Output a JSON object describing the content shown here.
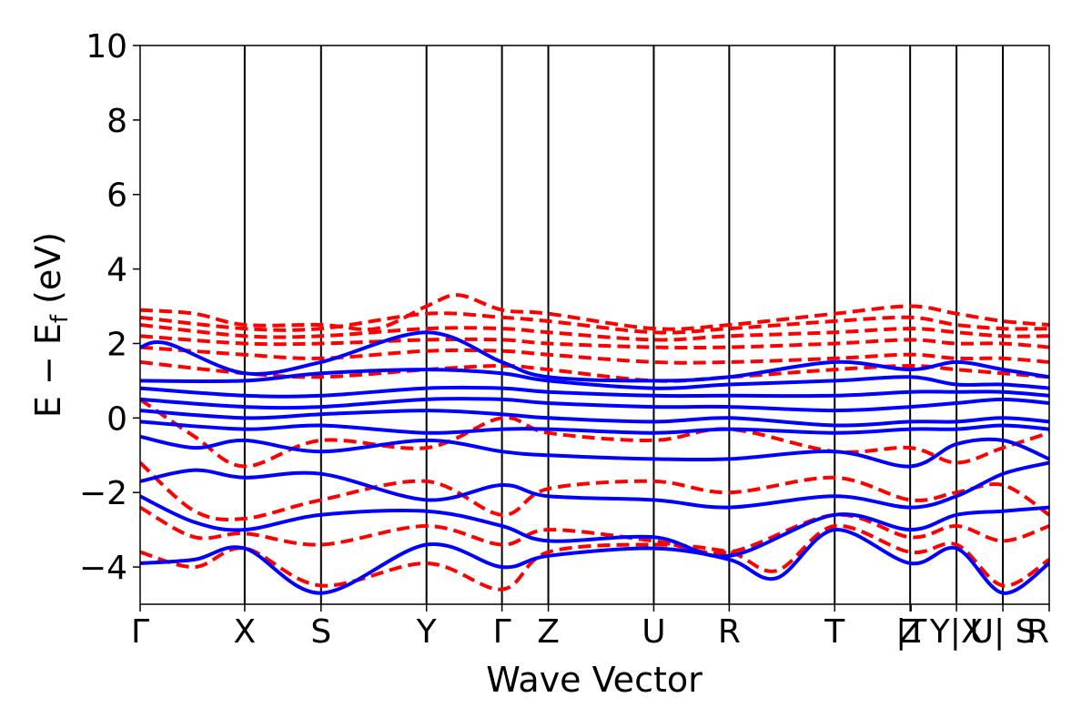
{
  "chart_data": {
    "type": "line",
    "xlabel": "Wave Vector",
    "ylabel_main": "E − E",
    "ylabel_sub": "f",
    "ylabel_unit": " (eV)",
    "ylim": [
      -5,
      10
    ],
    "yticks": [
      10,
      8,
      6,
      4,
      2,
      0,
      -2,
      -4
    ],
    "ytick_labels": [
      "10",
      "8",
      "6",
      "4",
      "2",
      "0",
      "−2",
      "−4"
    ],
    "xlim": [
      0,
      1
    ],
    "kpoints": [
      {
        "label": "Γ",
        "x": 0.0
      },
      {
        "label": "X",
        "x": 0.115
      },
      {
        "label": "S",
        "x": 0.199
      },
      {
        "label": "Y",
        "x": 0.315
      },
      {
        "label": "Γ",
        "x": 0.398
      },
      {
        "label": "Z",
        "x": 0.449
      },
      {
        "label": "U",
        "x": 0.565
      },
      {
        "label": "R",
        "x": 0.648
      },
      {
        "label": "T",
        "x": 0.764
      },
      {
        "label": "Z",
        "x": 0.847
      },
      {
        "label": "|T",
        "x": 0.848
      },
      {
        "label": "Y|X",
        "x": 0.898
      },
      {
        "label": "U| S",
        "x": 0.949
      },
      {
        "label": "R",
        "x": 1.0
      }
    ],
    "vlines": [
      0.115,
      0.199,
      0.315,
      0.398,
      0.449,
      0.565,
      0.648,
      0.764,
      0.847,
      0.898,
      0.949
    ],
    "series": [
      {
        "style": "dashed",
        "color": "#ff0000",
        "bands": [
          {
            "x": [
              0,
              0.06,
              0.115,
              0.199,
              0.26,
              0.315,
              0.35,
              0.398,
              0.449,
              0.565,
              0.648,
              0.764,
              0.847,
              0.898,
              0.949,
              1.0
            ],
            "y": [
              2.9,
              2.8,
              2.5,
              2.5,
              2.4,
              3.0,
              3.3,
              2.9,
              2.8,
              2.4,
              2.5,
              2.8,
              3.0,
              2.8,
              2.6,
              2.5
            ]
          },
          {
            "x": [
              0,
              0.115,
              0.199,
              0.315,
              0.398,
              0.449,
              0.565,
              0.648,
              0.764,
              0.847,
              0.898,
              0.949,
              1.0
            ],
            "y": [
              2.7,
              2.4,
              2.4,
              2.8,
              2.7,
              2.6,
              2.3,
              2.4,
              2.6,
              2.7,
              2.5,
              2.4,
              2.4
            ]
          },
          {
            "x": [
              0,
              0.115,
              0.199,
              0.315,
              0.398,
              0.449,
              0.565,
              0.648,
              0.764,
              0.847,
              0.898,
              0.949,
              1.0
            ],
            "y": [
              2.5,
              2.2,
              2.2,
              2.4,
              2.4,
              2.3,
              2.1,
              2.2,
              2.3,
              2.4,
              2.3,
              2.2,
              2.2
            ]
          },
          {
            "x": [
              0,
              0.115,
              0.199,
              0.315,
              0.398,
              0.449,
              0.565,
              0.648,
              0.764,
              0.847,
              0.898,
              0.949,
              1.0
            ],
            "y": [
              2.2,
              2.0,
              2.0,
              2.1,
              2.1,
              2.0,
              1.9,
              1.9,
              2.0,
              2.1,
              2.0,
              2.0,
              1.9
            ]
          },
          {
            "x": [
              0,
              0.115,
              0.199,
              0.315,
              0.398,
              0.449,
              0.565,
              0.648,
              0.764,
              0.847,
              0.898,
              0.949,
              1.0
            ],
            "y": [
              1.9,
              1.7,
              1.6,
              1.8,
              1.8,
              1.7,
              1.5,
              1.5,
              1.6,
              1.7,
              1.6,
              1.6,
              1.5
            ]
          },
          {
            "x": [
              0,
              0.115,
              0.199,
              0.315,
              0.398,
              0.449,
              0.565,
              0.648,
              0.764,
              0.847,
              0.898,
              0.949,
              1.0
            ],
            "y": [
              1.5,
              1.2,
              1.1,
              1.3,
              1.4,
              1.3,
              1.0,
              1.1,
              1.3,
              1.4,
              1.3,
              1.2,
              1.1
            ]
          },
          {
            "x": [
              0,
              0.06,
              0.115,
              0.199,
              0.315,
              0.398,
              0.449,
              0.565,
              0.648,
              0.764,
              0.847,
              0.898,
              0.949,
              1.0
            ],
            "y": [
              0.5,
              -0.5,
              -1.3,
              -0.6,
              -0.8,
              0.0,
              -0.4,
              -0.6,
              -0.3,
              -0.9,
              -0.8,
              -1.2,
              -0.8,
              -0.4
            ]
          },
          {
            "x": [
              0,
              0.06,
              0.115,
              0.199,
              0.315,
              0.398,
              0.449,
              0.565,
              0.648,
              0.764,
              0.847,
              0.898,
              0.949,
              1.0
            ],
            "y": [
              -1.2,
              -2.5,
              -2.7,
              -2.2,
              -1.7,
              -2.6,
              -1.9,
              -1.7,
              -2.0,
              -1.6,
              -2.2,
              -2.0,
              -1.8,
              -2.6
            ]
          },
          {
            "x": [
              0,
              0.06,
              0.115,
              0.199,
              0.315,
              0.398,
              0.449,
              0.565,
              0.648,
              0.764,
              0.847,
              0.898,
              0.949,
              1.0
            ],
            "y": [
              -2.4,
              -3.2,
              -3.1,
              -3.4,
              -2.9,
              -3.4,
              -3.0,
              -3.3,
              -3.6,
              -2.6,
              -3.2,
              -2.9,
              -3.3,
              -2.9
            ]
          },
          {
            "x": [
              0,
              0.06,
              0.115,
              0.199,
              0.315,
              0.398,
              0.449,
              0.565,
              0.648,
              0.7,
              0.764,
              0.847,
              0.898,
              0.949,
              1.0
            ],
            "y": [
              -3.6,
              -4.0,
              -3.5,
              -4.5,
              -3.9,
              -4.6,
              -3.6,
              -3.4,
              -3.6,
              -4.1,
              -2.9,
              -3.6,
              -3.4,
              -4.5,
              -3.8
            ]
          }
        ]
      },
      {
        "style": "solid",
        "color": "#0000ff",
        "bands": [
          {
            "x": [
              0,
              0.03,
              0.115,
              0.199,
              0.315,
              0.398,
              0.449,
              0.565,
              0.648,
              0.764,
              0.847,
              0.898,
              0.949,
              1.0
            ],
            "y": [
              1.9,
              2.0,
              1.2,
              1.5,
              2.3,
              1.5,
              1.1,
              1.0,
              1.1,
              1.5,
              1.3,
              1.5,
              1.3,
              1.1
            ]
          },
          {
            "x": [
              0,
              0.115,
              0.199,
              0.315,
              0.398,
              0.449,
              0.565,
              0.648,
              0.764,
              0.847,
              0.898,
              0.949,
              1.0
            ],
            "y": [
              1.0,
              1.0,
              1.2,
              1.3,
              1.2,
              1.0,
              0.8,
              0.9,
              1.0,
              1.1,
              0.9,
              0.9,
              0.8
            ]
          },
          {
            "x": [
              0,
              0.115,
              0.199,
              0.315,
              0.398,
              0.449,
              0.565,
              0.648,
              0.764,
              0.847,
              0.898,
              0.949,
              1.0
            ],
            "y": [
              0.8,
              0.6,
              0.6,
              0.8,
              0.8,
              0.7,
              0.6,
              0.6,
              0.6,
              0.7,
              0.7,
              0.7,
              0.6
            ]
          },
          {
            "x": [
              0,
              0.115,
              0.199,
              0.315,
              0.398,
              0.449,
              0.565,
              0.648,
              0.764,
              0.847,
              0.898,
              0.949,
              1.0
            ],
            "y": [
              0.5,
              0.3,
              0.3,
              0.5,
              0.5,
              0.4,
              0.3,
              0.3,
              0.2,
              0.3,
              0.4,
              0.5,
              0.4
            ]
          },
          {
            "x": [
              0,
              0.115,
              0.199,
              0.315,
              0.398,
              0.449,
              0.565,
              0.648,
              0.764,
              0.847,
              0.898,
              0.949,
              1.0
            ],
            "y": [
              0.2,
              0.0,
              0.1,
              0.2,
              0.1,
              0.0,
              -0.1,
              0.0,
              -0.2,
              -0.1,
              -0.1,
              0.0,
              -0.1
            ]
          },
          {
            "x": [
              0,
              0.115,
              0.199,
              0.315,
              0.398,
              0.449,
              0.565,
              0.648,
              0.764,
              0.847,
              0.898,
              0.949,
              1.0
            ],
            "y": [
              -0.1,
              -0.3,
              -0.2,
              -0.4,
              -0.3,
              -0.3,
              -0.4,
              -0.3,
              -0.4,
              -0.3,
              -0.3,
              -0.2,
              -0.3
            ]
          },
          {
            "x": [
              0,
              0.06,
              0.115,
              0.199,
              0.315,
              0.398,
              0.449,
              0.565,
              0.648,
              0.764,
              0.847,
              0.898,
              0.949,
              1.0
            ],
            "y": [
              -0.5,
              -0.8,
              -0.6,
              -0.9,
              -0.6,
              -0.9,
              -1.0,
              -1.1,
              -1.1,
              -0.9,
              -1.3,
              -0.7,
              -0.6,
              -1.1
            ]
          },
          {
            "x": [
              0,
              0.06,
              0.115,
              0.199,
              0.315,
              0.398,
              0.449,
              0.565,
              0.648,
              0.764,
              0.847,
              0.898,
              0.949,
              1.0
            ],
            "y": [
              -1.7,
              -1.4,
              -1.6,
              -1.5,
              -2.2,
              -1.8,
              -2.1,
              -2.2,
              -2.4,
              -2.1,
              -2.4,
              -2.1,
              -1.5,
              -1.2
            ]
          },
          {
            "x": [
              0,
              0.06,
              0.115,
              0.199,
              0.315,
              0.398,
              0.449,
              0.565,
              0.648,
              0.764,
              0.847,
              0.898,
              0.949,
              1.0
            ],
            "y": [
              -2.1,
              -2.8,
              -3.0,
              -2.6,
              -2.5,
              -2.9,
              -3.3,
              -3.2,
              -3.7,
              -2.6,
              -3.0,
              -2.6,
              -2.5,
              -2.4
            ]
          },
          {
            "x": [
              0,
              0.06,
              0.115,
              0.199,
              0.315,
              0.398,
              0.449,
              0.565,
              0.648,
              0.7,
              0.764,
              0.847,
              0.898,
              0.949,
              1.0
            ],
            "y": [
              -3.9,
              -3.8,
              -3.5,
              -4.7,
              -3.4,
              -4.0,
              -3.7,
              -3.5,
              -3.8,
              -4.3,
              -3.0,
              -3.9,
              -3.5,
              -4.7,
              -3.9
            ]
          }
        ]
      }
    ]
  }
}
